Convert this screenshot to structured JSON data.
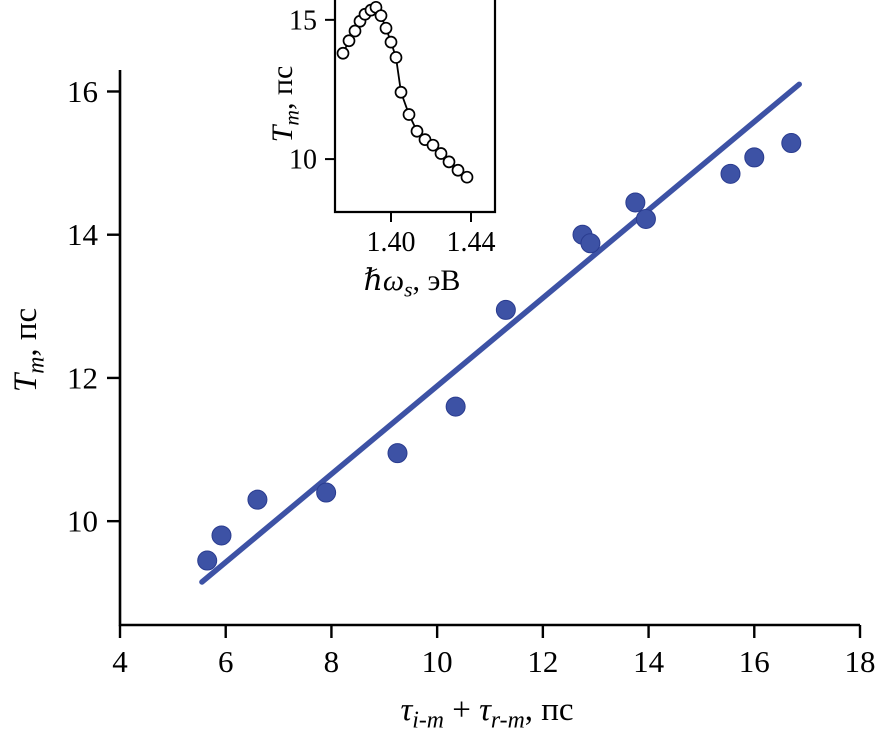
{
  "figure": {
    "background": "#ffffff",
    "accent_blue": "#3d52a5"
  },
  "chart_data": [
    {
      "id": "main",
      "type": "scatter",
      "xlabel_runs": [
        {
          "t": "τ",
          "i": 1
        },
        {
          "t": "i-m",
          "i": 1,
          "sub": 1
        },
        {
          "t": " + "
        },
        {
          "t": "τ",
          "i": 1
        },
        {
          "t": "r-m",
          "i": 1,
          "sub": 1
        },
        {
          "t": ", пс"
        }
      ],
      "ylabel_runs": [
        {
          "t": "T",
          "i": 1
        },
        {
          "t": "m",
          "i": 1,
          "sub": 1
        },
        {
          "t": ", пс"
        }
      ],
      "xlim": [
        4,
        18
      ],
      "ylim": [
        8.55,
        16.3
      ],
      "x_ticks": [
        "4",
        "6",
        "8",
        "10",
        "12",
        "14",
        "16",
        "18"
      ],
      "x_tick_values": [
        4,
        6,
        8,
        10,
        12,
        14,
        16,
        18
      ],
      "y_ticks": [
        "10",
        "12",
        "14",
        "16"
      ],
      "y_tick_values": [
        10,
        12,
        14,
        16
      ],
      "grid": false,
      "marker_fill": "#3d52a5",
      "marker_stroke": "#2a3c8f",
      "marker_stroke_width": 1,
      "points": [
        [
          5.65,
          9.45
        ],
        [
          5.92,
          9.8
        ],
        [
          6.6,
          10.3
        ],
        [
          7.9,
          10.4
        ],
        [
          9.25,
          10.95
        ],
        [
          10.35,
          11.6
        ],
        [
          11.3,
          12.95
        ],
        [
          12.75,
          14.0
        ],
        [
          12.9,
          13.88
        ],
        [
          13.75,
          14.45
        ],
        [
          13.95,
          14.22
        ],
        [
          15.55,
          14.85
        ],
        [
          16.0,
          15.08
        ],
        [
          16.7,
          15.28
        ]
      ],
      "fit_line": {
        "from": [
          5.55,
          9.15
        ],
        "to": [
          16.85,
          16.1
        ],
        "color": "#3d52a5"
      }
    },
    {
      "id": "inset",
      "type": "line",
      "xlabel_runs": [
        {
          "t": "ℏω",
          "i": 1
        },
        {
          "t": "s",
          "i": 1,
          "sub": 1
        },
        {
          "t": ", эВ"
        }
      ],
      "ylabel_runs": [
        {
          "t": "T",
          "i": 1
        },
        {
          "t": "m",
          "i": 1,
          "sub": 1
        },
        {
          "t": ", пс"
        }
      ],
      "xlim": [
        1.372,
        1.452
      ],
      "ylim": [
        8.1,
        16.0
      ],
      "x_ticks": [
        "1.40",
        "1.44"
      ],
      "x_tick_values": [
        1.4,
        1.44
      ],
      "y_ticks": [
        "15",
        "10"
      ],
      "y_tick_values": [
        15,
        10
      ],
      "grid": false,
      "connect": true,
      "line_color": "#000000",
      "marker_fill": "#ffffff",
      "marker_stroke": "#000000",
      "marker_stroke_width": 1.7,
      "points": [
        [
          1.376,
          13.8
        ],
        [
          1.379,
          14.25
        ],
        [
          1.382,
          14.6
        ],
        [
          1.3845,
          14.95
        ],
        [
          1.387,
          15.2
        ],
        [
          1.39,
          15.35
        ],
        [
          1.3925,
          15.45
        ],
        [
          1.395,
          15.15
        ],
        [
          1.3975,
          14.7
        ],
        [
          1.4,
          14.2
        ],
        [
          1.4025,
          13.65
        ],
        [
          1.405,
          12.4
        ],
        [
          1.409,
          11.6
        ],
        [
          1.413,
          11.0
        ],
        [
          1.417,
          10.7
        ],
        [
          1.421,
          10.5
        ],
        [
          1.425,
          10.2
        ],
        [
          1.429,
          9.9
        ],
        [
          1.4335,
          9.6
        ],
        [
          1.438,
          9.35
        ]
      ]
    }
  ]
}
